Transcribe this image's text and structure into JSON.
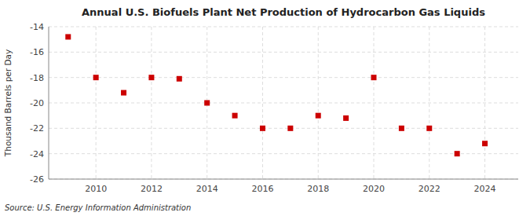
{
  "chart_data": {
    "type": "scatter",
    "title": "Annual U.S. Biofuels Plant Net Production of Hydrocarbon Gas Liquids",
    "ylabel": "Thousand Barrels per Day",
    "source": "Source: U.S. Energy Information Administration",
    "x": [
      2009,
      2010,
      2011,
      2012,
      2013,
      2014,
      2015,
      2016,
      2017,
      2018,
      2019,
      2020,
      2021,
      2022,
      2023,
      2024
    ],
    "values": [
      -14.8,
      -18.0,
      -19.2,
      -18.0,
      -18.1,
      -20.0,
      -21.0,
      -22.0,
      -22.0,
      -21.0,
      -21.2,
      -18.0,
      -22.0,
      -22.0,
      -24.0,
      -23.2
    ],
    "color": "#cc0000",
    "marker": "square",
    "xlim": [
      2008.3,
      2025.2
    ],
    "xticks": [
      2010,
      2012,
      2014,
      2016,
      2018,
      2020,
      2022,
      2024
    ],
    "ylim": [
      -26,
      -14
    ],
    "yticks": [
      -26,
      -24,
      -22,
      -20,
      -18,
      -16,
      -14
    ],
    "grid": true
  }
}
